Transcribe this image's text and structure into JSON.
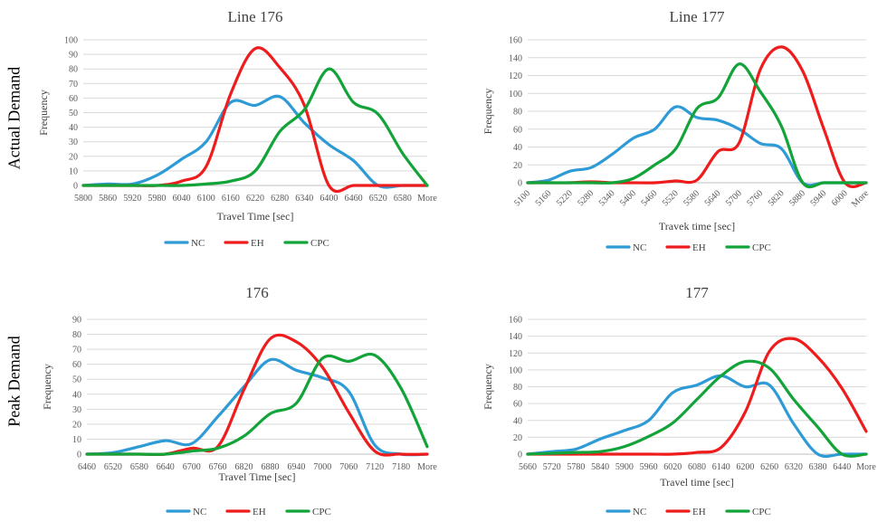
{
  "row_labels": {
    "top": "Actual Demand",
    "bottom": "Peak Demand"
  },
  "colors": {
    "NC": "#2e9bd6",
    "EH": "#ee1c1c",
    "CPC": "#12a339"
  },
  "chart_data": [
    {
      "type": "line",
      "title": "Line 176",
      "xlabel": "Travel Time [sec]",
      "ylabel": "Frequency",
      "ylim": [
        0,
        100
      ],
      "yticks": [
        0,
        10,
        20,
        30,
        40,
        50,
        60,
        70,
        80,
        90,
        100
      ],
      "rotated_xticks": false,
      "categories": [
        "5800",
        "5860",
        "5920",
        "5980",
        "6040",
        "6100",
        "6160",
        "6220",
        "6280",
        "6340",
        "6400",
        "6460",
        "6520",
        "6580",
        "More"
      ],
      "series": [
        {
          "name": "NC",
          "values": [
            0,
            1,
            1,
            7,
            18,
            30,
            57,
            55,
            61,
            43,
            28,
            17,
            0,
            0,
            0
          ]
        },
        {
          "name": "EH",
          "values": [
            0,
            0,
            0,
            0,
            3,
            13,
            63,
            94,
            81,
            55,
            0,
            0,
            0,
            0,
            0
          ]
        },
        {
          "name": "CPC",
          "values": [
            0,
            0,
            0,
            0,
            0,
            1,
            3,
            10,
            37,
            52,
            80,
            57,
            49,
            22,
            0
          ]
        }
      ],
      "grid": true,
      "legend": "bottom"
    },
    {
      "type": "line",
      "title": "Line 177",
      "xlabel": "Travek time [sec]",
      "ylabel": "Frequency",
      "ylim": [
        0,
        160
      ],
      "yticks": [
        0,
        20,
        40,
        60,
        80,
        100,
        120,
        140,
        160
      ],
      "rotated_xticks": true,
      "categories": [
        "5100",
        "5160",
        "5220",
        "5280",
        "5340",
        "5400",
        "5460",
        "5520",
        "5580",
        "5640",
        "5700",
        "5760",
        "5820",
        "5880",
        "5940",
        "6000",
        "More"
      ],
      "series": [
        {
          "name": "NC",
          "values": [
            0,
            3,
            13,
            17,
            32,
            50,
            60,
            85,
            73,
            70,
            60,
            44,
            38,
            0,
            0,
            0,
            0
          ]
        },
        {
          "name": "EH",
          "values": [
            0,
            0,
            0,
            1,
            0,
            0,
            0,
            2,
            3,
            35,
            45,
            127,
            152,
            125,
            60,
            0,
            0
          ]
        },
        {
          "name": "CPC",
          "values": [
            0,
            0,
            0,
            0,
            0,
            5,
            20,
            38,
            83,
            95,
            133,
            102,
            63,
            0,
            0,
            0,
            0
          ]
        }
      ],
      "grid": true,
      "legend": "bottom"
    },
    {
      "type": "line",
      "title": "176",
      "xlabel": "Travel Time [sec]",
      "ylabel": "Frequency",
      "ylim": [
        0,
        90
      ],
      "yticks": [
        0,
        10,
        20,
        30,
        40,
        50,
        60,
        70,
        80,
        90
      ],
      "rotated_xticks": false,
      "categories": [
        "6460",
        "6520",
        "6580",
        "6640",
        "6700",
        "6760",
        "6820",
        "6880",
        "6940",
        "7000",
        "7060",
        "7120",
        "7180",
        "More"
      ],
      "series": [
        {
          "name": "NC",
          "values": [
            0,
            1,
            5,
            9,
            7,
            25,
            45,
            63,
            56,
            51,
            42,
            6,
            0,
            0
          ]
        },
        {
          "name": "EH",
          "values": [
            0,
            0,
            0,
            0,
            4,
            5,
            43,
            77,
            75,
            58,
            28,
            2,
            0,
            0
          ]
        },
        {
          "name": "CPC",
          "values": [
            0,
            0,
            0,
            0,
            2,
            4,
            12,
            27,
            34,
            64,
            62,
            66,
            44,
            5
          ]
        }
      ],
      "grid": true,
      "legend": "bottom"
    },
    {
      "type": "line",
      "title": "177",
      "xlabel": "Travel time [sec]",
      "ylabel": "Frequency",
      "ylim": [
        0,
        160
      ],
      "yticks": [
        0,
        20,
        40,
        60,
        80,
        100,
        120,
        140,
        160
      ],
      "rotated_xticks": false,
      "categories": [
        "5660",
        "5720",
        "5780",
        "5840",
        "5900",
        "5960",
        "6020",
        "6080",
        "6140",
        "6200",
        "6260",
        "6320",
        "6380",
        "6440",
        "More"
      ],
      "series": [
        {
          "name": "NC",
          "values": [
            0,
            3,
            6,
            18,
            28,
            40,
            73,
            82,
            93,
            80,
            82,
            36,
            0,
            0,
            0
          ]
        },
        {
          "name": "EH",
          "values": [
            0,
            0,
            0,
            0,
            0,
            0,
            0,
            2,
            8,
            50,
            122,
            137,
            115,
            78,
            27
          ]
        },
        {
          "name": "CPC",
          "values": [
            0,
            1,
            2,
            3,
            9,
            21,
            37,
            65,
            93,
            110,
            102,
            65,
            32,
            0,
            0
          ]
        }
      ],
      "grid": true,
      "legend": "bottom"
    }
  ]
}
